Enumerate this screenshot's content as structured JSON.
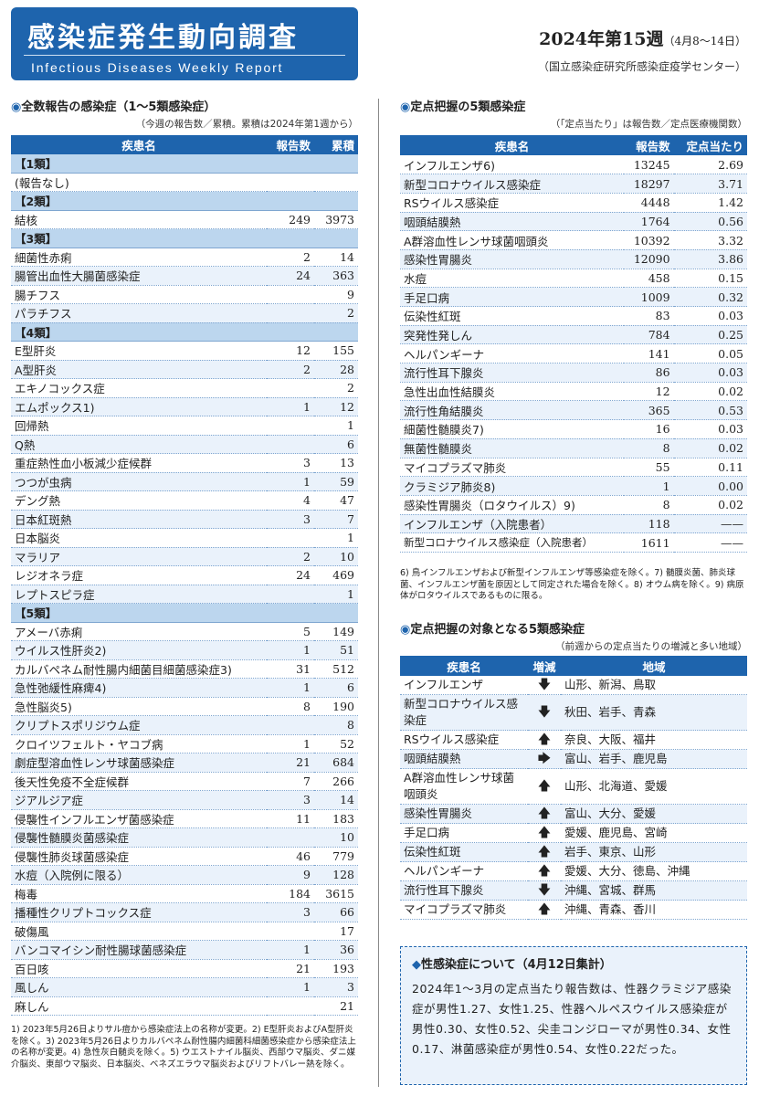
{
  "header": {
    "title_jp": "感染症発生動向調査",
    "title_en": "Infectious Diseases Weekly Report",
    "week": "2024年第15週",
    "week_range": "（4月8～14日）",
    "organization": "（国立感染症研究所感染症疫学センター）"
  },
  "all_report": {
    "title": "全数報告の感染症（1～5類感染症）",
    "note": "（今週の報告数／累積。累積は2024年第1週から）",
    "columns": [
      "疾患名",
      "報告数",
      "累積"
    ],
    "rows": [
      {
        "type": "cat",
        "name": "【1類】"
      },
      {
        "name": "(報告なし)",
        "count": "",
        "cum": ""
      },
      {
        "type": "cat",
        "name": "【2類】"
      },
      {
        "name": "結核",
        "count": "249",
        "cum": "3973"
      },
      {
        "type": "cat",
        "name": "【3類】"
      },
      {
        "name": "細菌性赤痢",
        "count": "2",
        "cum": "14"
      },
      {
        "name": "腸管出血性大腸菌感染症",
        "count": "24",
        "cum": "363"
      },
      {
        "name": "腸チフス",
        "count": "",
        "cum": "9"
      },
      {
        "name": "パラチフス",
        "count": "",
        "cum": "2"
      },
      {
        "type": "cat",
        "name": "【4類】"
      },
      {
        "name": "E型肝炎",
        "count": "12",
        "cum": "155"
      },
      {
        "name": "A型肝炎",
        "count": "2",
        "cum": "28"
      },
      {
        "name": "エキノコックス症",
        "count": "",
        "cum": "2"
      },
      {
        "name": "エムポックス1)",
        "count": "1",
        "cum": "12"
      },
      {
        "name": "回帰熱",
        "count": "",
        "cum": "1"
      },
      {
        "name": "Q熱",
        "count": "",
        "cum": "6"
      },
      {
        "name": "重症熱性血小板減少症候群",
        "count": "3",
        "cum": "13"
      },
      {
        "name": "つつが虫病",
        "count": "1",
        "cum": "59"
      },
      {
        "name": "デング熱",
        "count": "4",
        "cum": "47"
      },
      {
        "name": "日本紅斑熱",
        "count": "3",
        "cum": "7"
      },
      {
        "name": "日本脳炎",
        "count": "",
        "cum": "1"
      },
      {
        "name": "マラリア",
        "count": "2",
        "cum": "10"
      },
      {
        "name": "レジオネラ症",
        "count": "24",
        "cum": "469"
      },
      {
        "name": "レプトスピラ症",
        "count": "",
        "cum": "1"
      },
      {
        "type": "cat",
        "name": "【5類】"
      },
      {
        "name": "アメーバ赤痢",
        "count": "5",
        "cum": "149"
      },
      {
        "name": "ウイルス性肝炎2)",
        "count": "1",
        "cum": "51"
      },
      {
        "name": "カルバペネム耐性腸内細菌目細菌感染症3)",
        "count": "31",
        "cum": "512"
      },
      {
        "name": "急性弛緩性麻痺4)",
        "count": "1",
        "cum": "6"
      },
      {
        "name": "急性脳炎5)",
        "count": "8",
        "cum": "190"
      },
      {
        "name": "クリプトスポリジウム症",
        "count": "",
        "cum": "8"
      },
      {
        "name": "クロイツフェルト・ヤコブ病",
        "count": "1",
        "cum": "52"
      },
      {
        "name": "劇症型溶血性レンサ球菌感染症",
        "count": "21",
        "cum": "684"
      },
      {
        "name": "後天性免疫不全症候群",
        "count": "7",
        "cum": "266"
      },
      {
        "name": "ジアルジア症",
        "count": "3",
        "cum": "14"
      },
      {
        "name": "侵襲性インフルエンザ菌感染症",
        "count": "11",
        "cum": "183"
      },
      {
        "name": "侵襲性髄膜炎菌感染症",
        "count": "",
        "cum": "10"
      },
      {
        "name": "侵襲性肺炎球菌感染症",
        "count": "46",
        "cum": "779"
      },
      {
        "name": "水痘（入院例に限る）",
        "count": "9",
        "cum": "128"
      },
      {
        "name": "梅毒",
        "count": "184",
        "cum": "3615"
      },
      {
        "name": "播種性クリプトコックス症",
        "count": "3",
        "cum": "66"
      },
      {
        "name": "破傷風",
        "count": "",
        "cum": "17"
      },
      {
        "name": "バンコマイシン耐性腸球菌感染症",
        "count": "1",
        "cum": "36"
      },
      {
        "name": "百日咳",
        "count": "21",
        "cum": "193"
      },
      {
        "name": "風しん",
        "count": "1",
        "cum": "3"
      },
      {
        "name": "麻しん",
        "count": "",
        "cum": "21"
      }
    ],
    "footnote": "1) 2023年5月26日よりサル痘から感染症法上の名称が変更。2) E型肝炎およびA型肝炎を除く。3) 2023年5月26日よりカルバペネム耐性腸内細菌科細菌感染症から感染症法上の名称が変更。4) 急性灰白髄炎を除く。5) ウエストナイル脳炎、西部ウマ脳炎、ダニ媒介脳炎、東部ウマ脳炎、日本脳炎、ベネズエラウマ脳炎およびリフトバレー熱を除く。"
  },
  "sentinel": {
    "title": "定点把握の5類感染症",
    "note": "（「定点当たり」は報告数／定点医療機関数）",
    "columns": [
      "疾患名",
      "報告数",
      "定点当たり"
    ],
    "rows": [
      {
        "name": "インフルエンザ6)",
        "count": "13245",
        "per": "2.69"
      },
      {
        "name": "新型コロナウイルス感染症",
        "count": "18297",
        "per": "3.71"
      },
      {
        "name": "RSウイルス感染症",
        "count": "4448",
        "per": "1.42"
      },
      {
        "name": "咽頭結膜熱",
        "count": "1764",
        "per": "0.56"
      },
      {
        "name": "A群溶血性レンサ球菌咽頭炎",
        "count": "10392",
        "per": "3.32"
      },
      {
        "name": "感染性胃腸炎",
        "count": "12090",
        "per": "3.86"
      },
      {
        "name": "水痘",
        "count": "458",
        "per": "0.15"
      },
      {
        "name": "手足口病",
        "count": "1009",
        "per": "0.32"
      },
      {
        "name": "伝染性紅斑",
        "count": "83",
        "per": "0.03"
      },
      {
        "name": "突発性発しん",
        "count": "784",
        "per": "0.25"
      },
      {
        "name": "ヘルパンギーナ",
        "count": "141",
        "per": "0.05"
      },
      {
        "name": "流行性耳下腺炎",
        "count": "86",
        "per": "0.03"
      },
      {
        "name": "急性出血性結膜炎",
        "count": "12",
        "per": "0.02"
      },
      {
        "name": "流行性角結膜炎",
        "count": "365",
        "per": "0.53"
      },
      {
        "name": "細菌性髄膜炎7)",
        "count": "16",
        "per": "0.03"
      },
      {
        "name": "無菌性髄膜炎",
        "count": "8",
        "per": "0.02"
      },
      {
        "name": "マイコプラズマ肺炎",
        "count": "55",
        "per": "0.11"
      },
      {
        "name": "クラミジア肺炎8)",
        "count": "1",
        "per": "0.00"
      },
      {
        "name": "感染性胃腸炎（ロタウイルス）9)",
        "count": "8",
        "per": "0.02"
      },
      {
        "name": "インフルエンザ（入院患者）",
        "count": "118",
        "per": "——"
      },
      {
        "name": "新型コロナウイルス感染症（入院患者）",
        "count": "1611",
        "per": "——"
      }
    ],
    "footnote": "6) 鳥インフルエンザおよび新型インフルエンザ等感染症を除く。7) 髄膜炎菌、肺炎球菌、インフルエンザ菌を原因として同定された場合を除く。8) オウム病を除く。9) 病原体がロタウイルスであるものに限る。"
  },
  "trend": {
    "title": "定点把握の対象となる5類感染症",
    "note": "（前週からの定点当たりの増減と多い地域）",
    "columns": [
      "疾患名",
      "増減",
      "地域"
    ],
    "rows": [
      {
        "name": "インフルエンザ",
        "dir": "down-icon",
        "arrow": "🡇",
        "region": "山形、新潟、鳥取"
      },
      {
        "name": "新型コロナウイルス感染症",
        "dir": "down-icon",
        "arrow": "🡇",
        "region": "秋田、岩手、青森"
      },
      {
        "name": "RSウイルス感染症",
        "dir": "up-icon",
        "arrow": "🡅",
        "region": "奈良、大阪、福井"
      },
      {
        "name": "咽頭結膜熱",
        "dir": "right-icon",
        "arrow": "🡆",
        "region": "富山、岩手、鹿児島"
      },
      {
        "name": "A群溶血性レンサ球菌咽頭炎",
        "dir": "up-icon",
        "arrow": "🡅",
        "region": "山形、北海道、愛媛"
      },
      {
        "name": "感染性胃腸炎",
        "dir": "up-icon",
        "arrow": "🡅",
        "region": "富山、大分、愛媛"
      },
      {
        "name": "手足口病",
        "dir": "up-icon",
        "arrow": "🡅",
        "region": "愛媛、鹿児島、宮崎"
      },
      {
        "name": "伝染性紅斑",
        "dir": "up-icon",
        "arrow": "🡅",
        "region": "岩手、東京、山形"
      },
      {
        "name": "ヘルパンギーナ",
        "dir": "up-icon",
        "arrow": "🡅",
        "region": "愛媛、大分、徳島、沖縄"
      },
      {
        "name": "流行性耳下腺炎",
        "dir": "down-icon",
        "arrow": "🡇",
        "region": "沖縄、宮城、群馬"
      },
      {
        "name": "マイコプラズマ肺炎",
        "dir": "up-icon",
        "arrow": "🡅",
        "region": "沖縄、青森、香川"
      }
    ]
  },
  "sti": {
    "title": "性感染症について（4月12日集計）",
    "body": "2024年1～3月の定点当たり報告数は、性器クラミジア感染症が男性1.27、女性1.25、性器ヘルペスウイルス感染症が男性0.30、女性0.52、尖圭コンジローマが男性0.34、女性0.17、淋菌感染症が男性0.54、女性0.22だった。"
  },
  "colors": {
    "accent": "#1e64ad",
    "band": "#bcd6ee",
    "stripe": "#eaf2fb"
  }
}
